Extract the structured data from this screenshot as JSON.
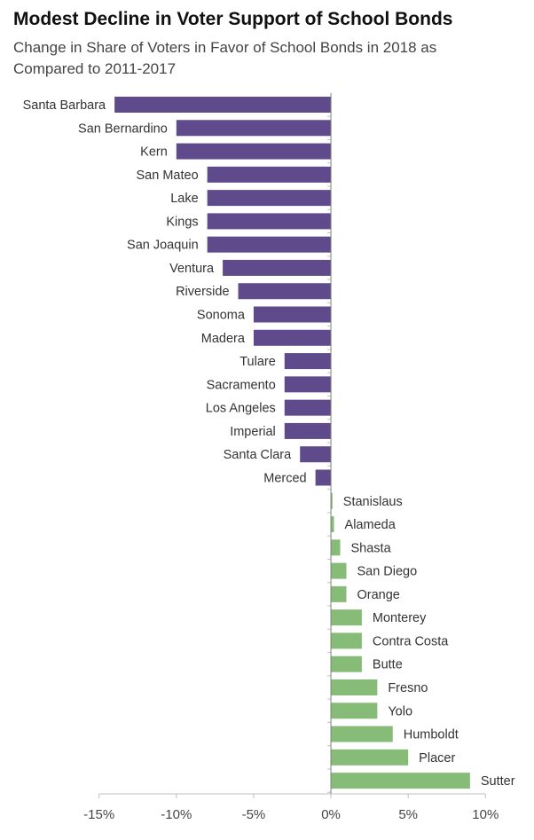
{
  "chart_data": {
    "type": "bar",
    "orientation": "horizontal",
    "title": "Modest Decline in Voter Support of School Bonds",
    "subtitle": "Change in Share of Voters in Favor of School Bonds in 2018 as Compared to 2011-2017",
    "categories": [
      "Santa Barbara",
      "San Bernardino",
      "Kern",
      "San Mateo",
      "Lake",
      "Kings",
      "San Joaquin",
      "Ventura",
      "Riverside",
      "Sonoma",
      "Madera",
      "Tulare",
      "Sacramento",
      "Los Angeles",
      "Imperial",
      "Santa Clara",
      "Merced",
      "Stanislaus",
      "Alameda",
      "Shasta",
      "San Diego",
      "Orange",
      "Monterey",
      "Contra Costa",
      "Butte",
      "Fresno",
      "Yolo",
      "Humboldt",
      "Placer",
      "Sutter"
    ],
    "values": [
      -14,
      -10,
      -10,
      -8,
      -8,
      -8,
      -8,
      -7,
      -6,
      -5,
      -5,
      -3,
      -3,
      -3,
      -3,
      -2,
      -1,
      0.1,
      0.2,
      0.6,
      1,
      1,
      2,
      2,
      2,
      3,
      3,
      4,
      5,
      9
    ],
    "unit": "%",
    "xlim": [
      -15,
      10
    ],
    "xticks": [
      "-15%",
      "-10%",
      "-5%",
      "0%",
      "5%",
      "10%"
    ],
    "xtick_values": [
      -15,
      -10,
      -5,
      0,
      5,
      10
    ],
    "grid": false,
    "colors": {
      "negative": "#5f4a8b",
      "positive": "#87bc78",
      "axis": "#bfbfbf"
    }
  }
}
